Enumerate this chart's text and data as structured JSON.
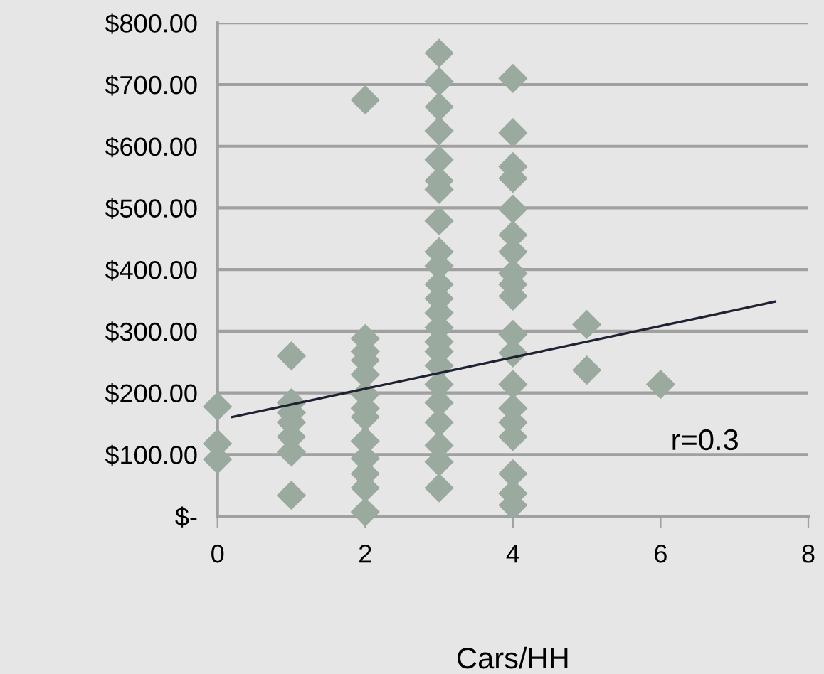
{
  "chart_data": {
    "type": "scatter",
    "xlabel": "Cars/HH",
    "marker": "diamond",
    "grid": "y",
    "legend": false,
    "xlim": [
      0,
      8
    ],
    "xticks": [
      0,
      2,
      4,
      6,
      8
    ],
    "ylim": [
      0,
      800
    ],
    "yticks": [
      {
        "value": 0,
        "label": "$-"
      },
      {
        "value": 100,
        "label": "$100.00"
      },
      {
        "value": 200,
        "label": "$200.00"
      },
      {
        "value": 300,
        "label": "$300.00"
      },
      {
        "value": 400,
        "label": "$400.00"
      },
      {
        "value": 500,
        "label": "$500.00"
      },
      {
        "value": 600,
        "label": "$600.00"
      },
      {
        "value": 700,
        "label": "$700.00"
      },
      {
        "value": 800,
        "label": "$800.00"
      }
    ],
    "series": [
      {
        "color": "#9aaa9f",
        "x": [
          0,
          0,
          0,
          1,
          1,
          1,
          1,
          1,
          1,
          1,
          2,
          2,
          2,
          2,
          2,
          2,
          2,
          2,
          2,
          2,
          2,
          2,
          2,
          3,
          3,
          3,
          3,
          3,
          3,
          3,
          3,
          3,
          3,
          3,
          3,
          3,
          3,
          3,
          3,
          3,
          3,
          3,
          3,
          3,
          3,
          3,
          4,
          4,
          4,
          4,
          4,
          4,
          4,
          4,
          4,
          4,
          4,
          4,
          4,
          4,
          4,
          4,
          4,
          4,
          4,
          5,
          5,
          6
        ],
        "values": [
          178,
          118,
          92,
          260,
          184,
          168,
          152,
          129,
          104,
          34,
          675,
          288,
          267,
          253,
          230,
          198,
          175,
          161,
          122,
          94,
          69,
          46,
          7,
          751,
          705,
          664,
          625,
          578,
          544,
          530,
          479,
          429,
          406,
          376,
          353,
          330,
          306,
          283,
          267,
          244,
          214,
          184,
          152,
          115,
          88,
          46,
          710,
          622,
          567,
          548,
          498,
          456,
          429,
          394,
          376,
          357,
          295,
          265,
          214,
          175,
          152,
          129,
          69,
          37,
          18,
          311,
          237,
          214
        ]
      },
      {
        "type": "line",
        "color": "#1f2233",
        "marker": "none",
        "x": [
          0.2,
          7.55
        ],
        "values": [
          161,
          348
        ]
      }
    ],
    "annotations": [
      "r=0.3"
    ]
  }
}
